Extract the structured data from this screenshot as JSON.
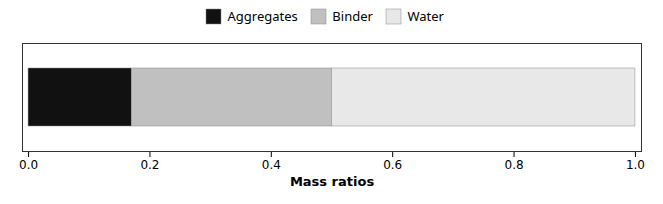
{
  "chart_data": {
    "type": "bar",
    "orientation": "horizontal",
    "stacked": true,
    "categories": [
      null
    ],
    "series": [
      {
        "name": "Aggregates",
        "color": "#111111",
        "values": [
          0.17
        ]
      },
      {
        "name": "Binder",
        "color": "#c0c0c0",
        "values": [
          0.33
        ]
      },
      {
        "name": "Water",
        "color": "#e8e8e8",
        "values": [
          0.5
        ]
      }
    ],
    "xlim": [
      -0.01,
      1.01
    ],
    "xticks": [
      {
        "value": 0.0,
        "label": "0.0"
      },
      0.2,
      0.4,
      0.6,
      0.8,
      {
        "value": 1.0,
        "label": "1.0"
      }
    ],
    "xlabel": "Mass ratios",
    "legend": "top",
    "grid": false
  }
}
